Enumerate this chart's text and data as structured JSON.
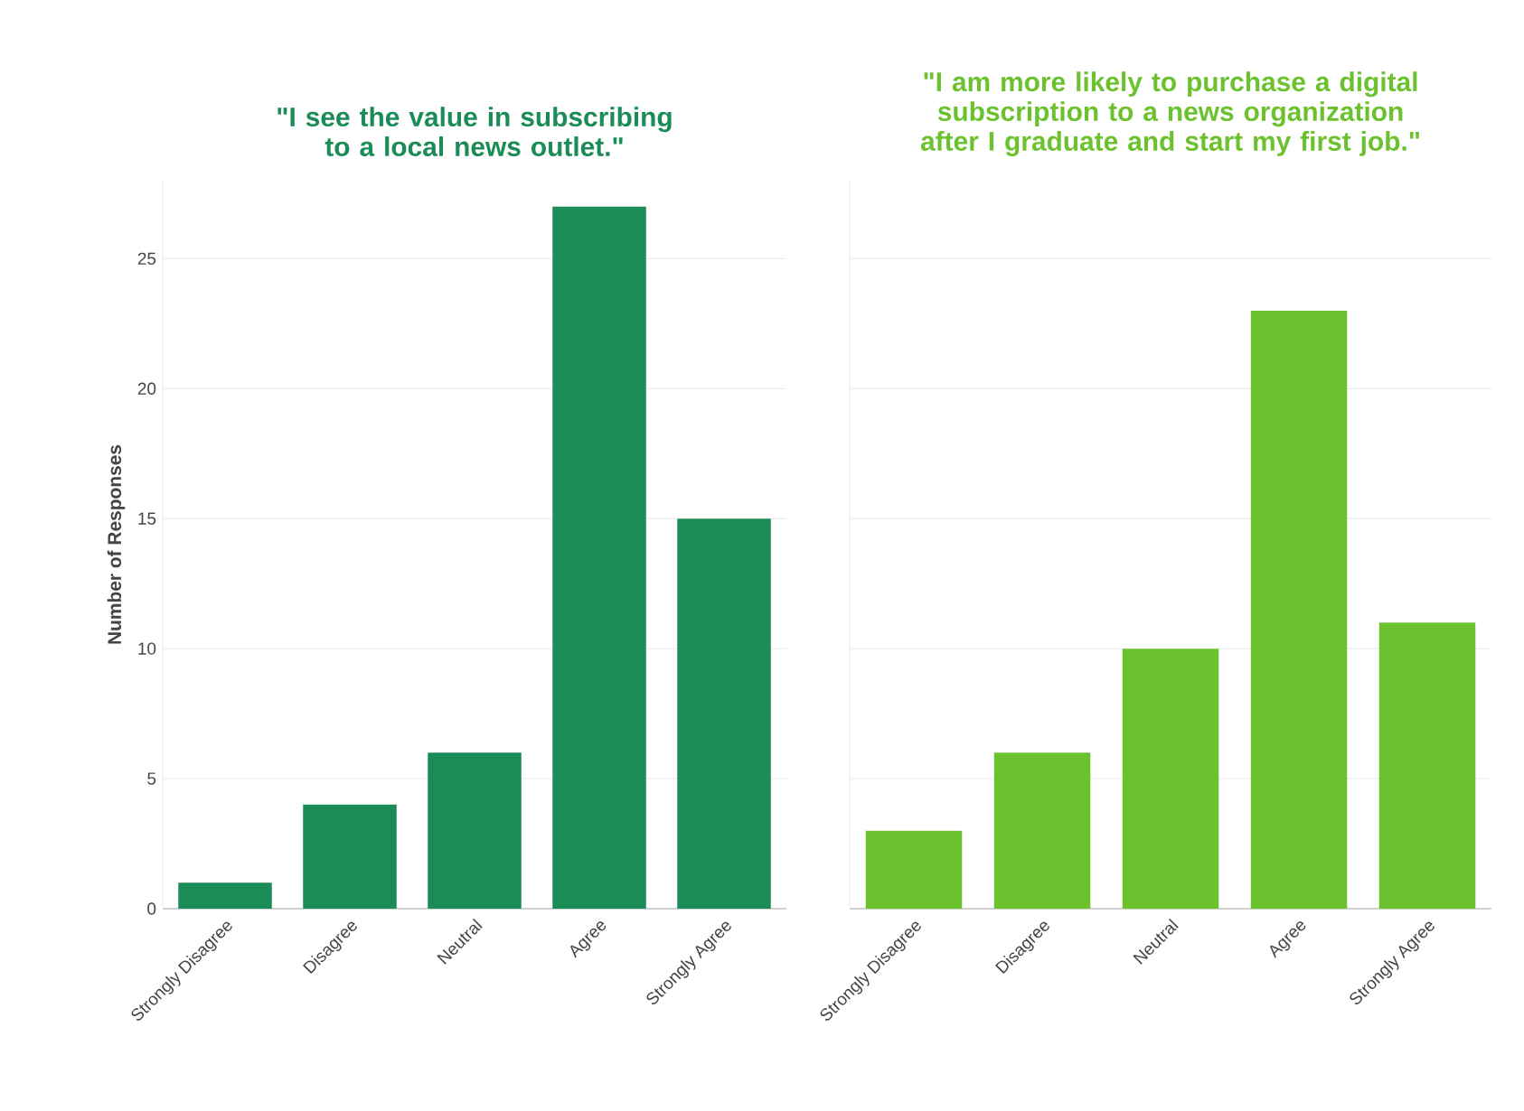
{
  "chart_data": [
    {
      "type": "bar",
      "title": "\"I see the value in subscribing to a local news outlet.\"",
      "ylabel": "Number of Responses",
      "categories": [
        "Strongly Disagree",
        "Disagree",
        "Neutral",
        "Agree",
        "Strongly Agree"
      ],
      "values": [
        1,
        4,
        6,
        27,
        15
      ],
      "color": "#1b8c58",
      "ylim": [
        0,
        28
      ],
      "yticks": [
        0,
        5,
        10,
        15,
        20,
        25
      ],
      "grid": "y"
    },
    {
      "type": "bar",
      "title": "\"I am more likely to purchase a digital subscription to a news organization after I graduate and start my first job.\"",
      "categories": [
        "Strongly Disagree",
        "Disagree",
        "Neutral",
        "Agree",
        "Strongly Agree"
      ],
      "values": [
        3,
        6,
        10,
        23,
        11
      ],
      "color": "#6cc22e",
      "ylim": [
        0,
        28
      ],
      "yticks": [
        0,
        5,
        10,
        15,
        20,
        25
      ],
      "grid": "y",
      "tick_labels": "x"
    }
  ]
}
